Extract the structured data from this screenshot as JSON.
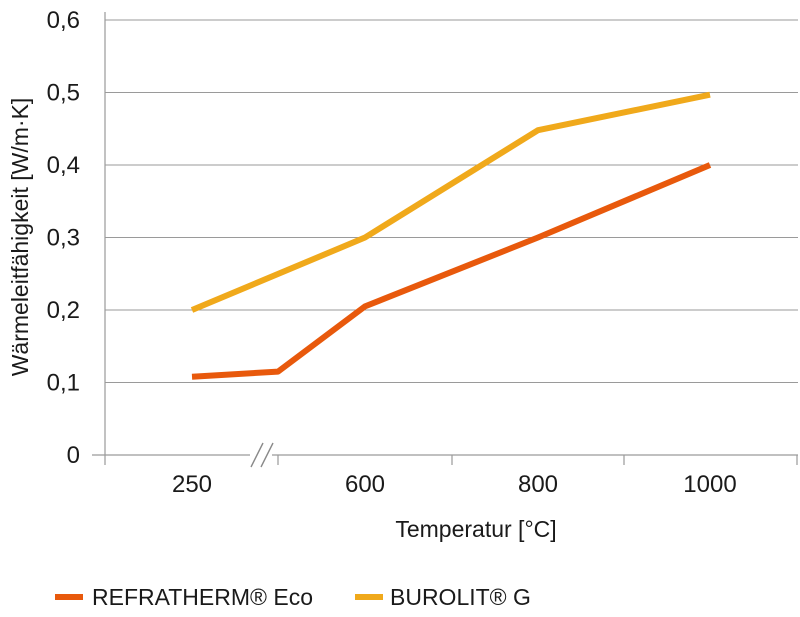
{
  "chart_data": {
    "type": "line",
    "xlabel": "Temperatur [°C]",
    "ylabel": "Wärmeleitfähigkeit [W/m·K]",
    "categories": [
      "250",
      "600",
      "800",
      "1000"
    ],
    "ylim": [
      0,
      0.6
    ],
    "yticks": [
      "0",
      "0,1",
      "0,2",
      "0,3",
      "0,4",
      "0,5",
      "0,6"
    ],
    "axis_break": "between 250 and 600",
    "grid": "horizontal",
    "legend_position": "bottom-left",
    "series": [
      {
        "name": "REFRATHERM® Eco",
        "color": "#e8590c",
        "points": [
          {
            "x": 250,
            "y": 0.108
          },
          {
            "x": "break-end",
            "y": 0.115
          },
          {
            "x": 600,
            "y": 0.205
          },
          {
            "x": 800,
            "y": 0.3
          },
          {
            "x": 1000,
            "y": 0.4
          }
        ]
      },
      {
        "name": "BUROLIT® G",
        "color": "#f0a91b",
        "points": [
          {
            "x": 250,
            "y": 0.2
          },
          {
            "x": 600,
            "y": 0.3
          },
          {
            "x": 800,
            "y": 0.448
          },
          {
            "x": 1000,
            "y": 0.497
          }
        ]
      }
    ]
  }
}
